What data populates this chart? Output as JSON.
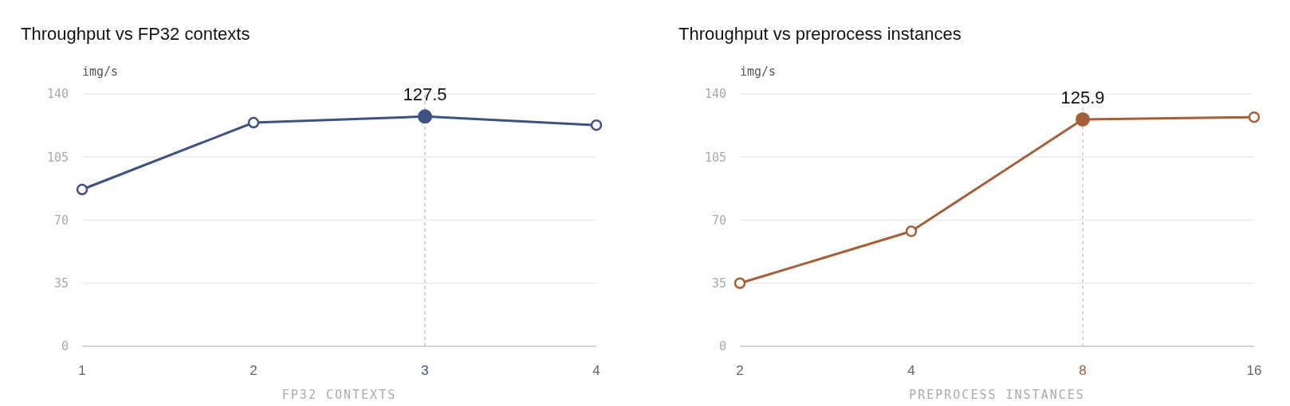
{
  "chart_data": [
    {
      "type": "line",
      "title": "Throughput vs FP32 contexts",
      "xlabel": "FP32 CONTEXTS",
      "ylabel": "img/s",
      "categories": [
        "1",
        "2",
        "3",
        "4"
      ],
      "series": [
        {
          "color": "#3d5182",
          "values": [
            87.0,
            124.1,
            127.5,
            122.7
          ],
          "value_labels": [
            null,
            null,
            "127.5",
            null
          ]
        }
      ],
      "ylim": [
        0,
        140
      ],
      "yticks": [
        0,
        35,
        70,
        105,
        140
      ],
      "grid": "y",
      "marker": "circle",
      "line_style": "solid",
      "ref_lines": [
        {
          "axis": "x",
          "value": "3",
          "color": "#b8bfd8",
          "line_style": "dashed"
        }
      ]
    },
    {
      "type": "line",
      "title": "Throughput vs preprocess instances",
      "xlabel": "PREPROCESS INSTANCES",
      "ylabel": "img/s",
      "categories": [
        "2",
        "4",
        "8",
        "16"
      ],
      "series": [
        {
          "color": "#a55f3a",
          "values": [
            35.0,
            63.8,
            125.9,
            127.1
          ],
          "value_labels": [
            null,
            null,
            "125.9",
            null
          ]
        }
      ],
      "ylim": [
        0,
        140
      ],
      "yticks": [
        0,
        35,
        70,
        105,
        140
      ],
      "grid": "y",
      "marker": "circle",
      "line_style": "solid",
      "ref_lines": [
        {
          "axis": "x",
          "value": "8",
          "color": "#e6c8b6",
          "line_style": "dashed"
        }
      ]
    }
  ]
}
